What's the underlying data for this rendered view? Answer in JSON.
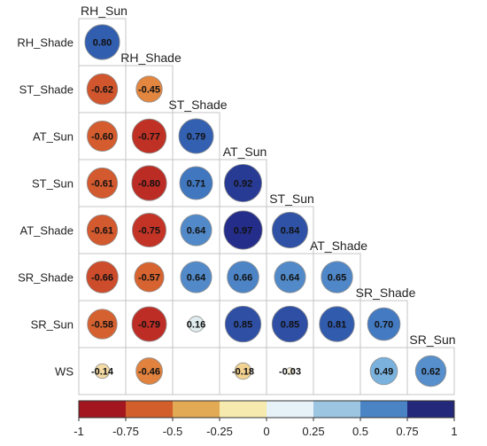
{
  "chart_data": {
    "type": "heatmap",
    "variables": [
      "RH_Sun",
      "RH_Shade",
      "ST_Shade",
      "AT_Sun",
      "ST_Sun",
      "AT_Shade",
      "SR_Shade",
      "SR_Sun"
    ],
    "rows": [
      "RH_Shade",
      "ST_Shade",
      "AT_Sun",
      "ST_Sun",
      "AT_Shade",
      "SR_Shade",
      "SR_Sun",
      "WS"
    ],
    "columns": [
      "RH_Sun",
      "RH_Shade",
      "ST_Shade",
      "AT_Sun",
      "ST_Sun",
      "AT_Shade",
      "SR_Shade",
      "SR_Sun"
    ],
    "values": [
      [
        0.8,
        null,
        null,
        null,
        null,
        null,
        null,
        null
      ],
      [
        -0.62,
        -0.45,
        null,
        null,
        null,
        null,
        null,
        null
      ],
      [
        -0.6,
        -0.77,
        0.79,
        null,
        null,
        null,
        null,
        null
      ],
      [
        -0.61,
        -0.8,
        0.71,
        0.92,
        null,
        null,
        null,
        null
      ],
      [
        -0.61,
        -0.75,
        0.64,
        0.97,
        0.84,
        null,
        null,
        null
      ],
      [
        -0.66,
        -0.57,
        0.64,
        0.66,
        0.64,
        0.65,
        null,
        null
      ],
      [
        -0.58,
        -0.79,
        0.16,
        0.85,
        0.85,
        0.81,
        0.7,
        null
      ],
      [
        -0.14,
        -0.46,
        null,
        -0.18,
        -0.03,
        null,
        0.49,
        0.62
      ]
    ],
    "labels": [
      [
        "0.80",
        null,
        null,
        null,
        null,
        null,
        null,
        null
      ],
      [
        "-0.62",
        "-0.45",
        null,
        null,
        null,
        null,
        null,
        null
      ],
      [
        "-0.60",
        "-0.77",
        "0.79",
        null,
        null,
        null,
        null,
        null
      ],
      [
        "-0.61",
        "-0.80",
        "0.71",
        "0.92",
        null,
        null,
        null,
        null
      ],
      [
        "-0.61",
        "-0.75",
        "0.64",
        "0.97",
        "0.84",
        null,
        null,
        null
      ],
      [
        "-0.66",
        "-0.57",
        "0.64",
        "0.66",
        "0.64",
        "0.65",
        null,
        null
      ],
      [
        "-0.58",
        "-0.79",
        "0.16",
        "0.85",
        "0.85",
        "0.81",
        "0.70",
        null
      ],
      [
        "-0.14",
        "-0.46",
        null,
        "-0.18",
        "-0.03",
        null,
        "0.49",
        "0.62"
      ]
    ],
    "colorbar": {
      "range": [
        -1,
        1
      ],
      "ticks": [
        "-1",
        "-0.75",
        "-0.5",
        "-0.25",
        "0",
        "0.25",
        "0.5",
        "0.75",
        "1"
      ],
      "colors": [
        "#a4161f",
        "#d25f2b",
        "#e3aa55",
        "#f6eaae",
        "#e6f1f8",
        "#9cc5e2",
        "#4a84c4",
        "#24287a"
      ]
    },
    "grid": true,
    "legend": "bottom"
  }
}
